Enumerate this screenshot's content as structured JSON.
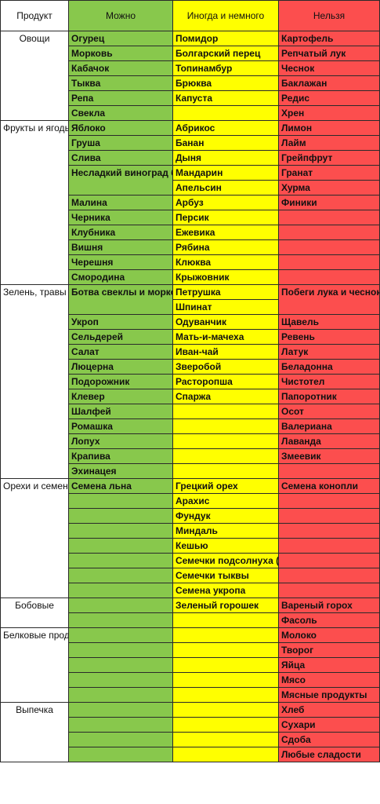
{
  "header": {
    "product": "Продукт",
    "allowed": "Можно",
    "sometimes": "Иногда и немного",
    "forbidden": "Нельзя"
  },
  "groups": [
    {
      "category": "Овощи",
      "rows": [
        [
          "Огурец",
          "Помидор",
          "Картофель"
        ],
        [
          "Морковь",
          "Болгарский перец",
          "Репчатый лук"
        ],
        [
          "Кабачок",
          "Топинамбур",
          "Чеснок"
        ],
        [
          "Тыква",
          "Брюква",
          "Баклажан"
        ],
        [
          "Репа",
          "Капуста",
          "Редис"
        ],
        [
          "Свекла",
          "",
          "Хрен"
        ]
      ]
    },
    {
      "category": "Фрукты и ягоды",
      "rows": [
        [
          "Яблоко",
          "Абрикос",
          "Лимон"
        ],
        [
          "Груша",
          "Банан",
          "Лайм"
        ],
        [
          "Слива",
          "Дыня",
          "Грейпфрут"
        ],
        [
          "Несладкий виноград без",
          "Мандарин",
          "Гранат"
        ],
        [
          "",
          "Апельсин",
          "Хурма"
        ],
        [
          "Малина",
          "Арбуз",
          "Финики"
        ],
        [
          "Черника",
          "Персик",
          ""
        ],
        [
          "Клубника",
          "Ежевика",
          ""
        ],
        [
          "Вишня",
          "Рябина",
          ""
        ],
        [
          "Черешня",
          "Клюква",
          ""
        ],
        [
          "Смородина",
          "Крыжовник",
          ""
        ]
      ]
    },
    {
      "category": "Зелень, травы",
      "rows": [
        [
          "Ботва свеклы и моркови",
          "Петрушка",
          "Побеги лука и чеснока"
        ],
        [
          "",
          "Шпинат",
          ""
        ],
        [
          "Укроп",
          "Одуванчик",
          "Щавель"
        ],
        [
          "Сельдерей",
          "Мать-и-мачеха",
          "Ревень"
        ],
        [
          "Салат",
          "Иван-чай",
          "Латук"
        ],
        [
          "Люцерна",
          "Зверобой",
          "Беладонна"
        ],
        [
          "Подорожник",
          "Расторопша",
          "Чистотел"
        ],
        [
          "Клевер",
          "Спаржа",
          "Папоротник"
        ],
        [
          "Шалфей",
          "",
          "Осот"
        ],
        [
          "Ромашка",
          "",
          "Валериана"
        ],
        [
          "Лопух",
          "",
          "Лаванда"
        ],
        [
          "Крапива",
          "",
          "Змеевик"
        ],
        [
          "Эхинацея",
          "",
          ""
        ]
      ]
    },
    {
      "category": "Орехи и семена",
      "rows": [
        [
          "Семена льна",
          "Грецкий орех",
          "Семена конопли"
        ],
        [
          "",
          "Арахис",
          ""
        ],
        [
          "",
          "Фундук",
          ""
        ],
        [
          "",
          "Миндаль",
          ""
        ],
        [
          "",
          "Кешью",
          ""
        ],
        [
          "",
          "Семечки подсолнуха (без кожуры)",
          ""
        ],
        [
          "",
          "Семечки тыквы",
          ""
        ],
        [
          "",
          "Семена укропа",
          ""
        ]
      ]
    },
    {
      "category": "Бобовые",
      "rows": [
        [
          "",
          "Зеленый горошек",
          "Вареный горох"
        ],
        [
          "",
          "",
          "Фасоль"
        ]
      ]
    },
    {
      "category": "Белковые продукты",
      "rows": [
        [
          "",
          "",
          "Молоко"
        ],
        [
          "",
          "",
          "Творог"
        ],
        [
          "",
          "",
          "Яйца"
        ],
        [
          "",
          "",
          "Мясо"
        ],
        [
          "",
          "",
          "Мясные продукты"
        ]
      ]
    },
    {
      "category": "Выпечка",
      "rows": [
        [
          "",
          "",
          "Хлеб"
        ],
        [
          "",
          "",
          "Сухари"
        ],
        [
          "",
          "",
          "Сдоба"
        ],
        [
          "",
          "",
          "Любые сладости"
        ]
      ]
    }
  ]
}
